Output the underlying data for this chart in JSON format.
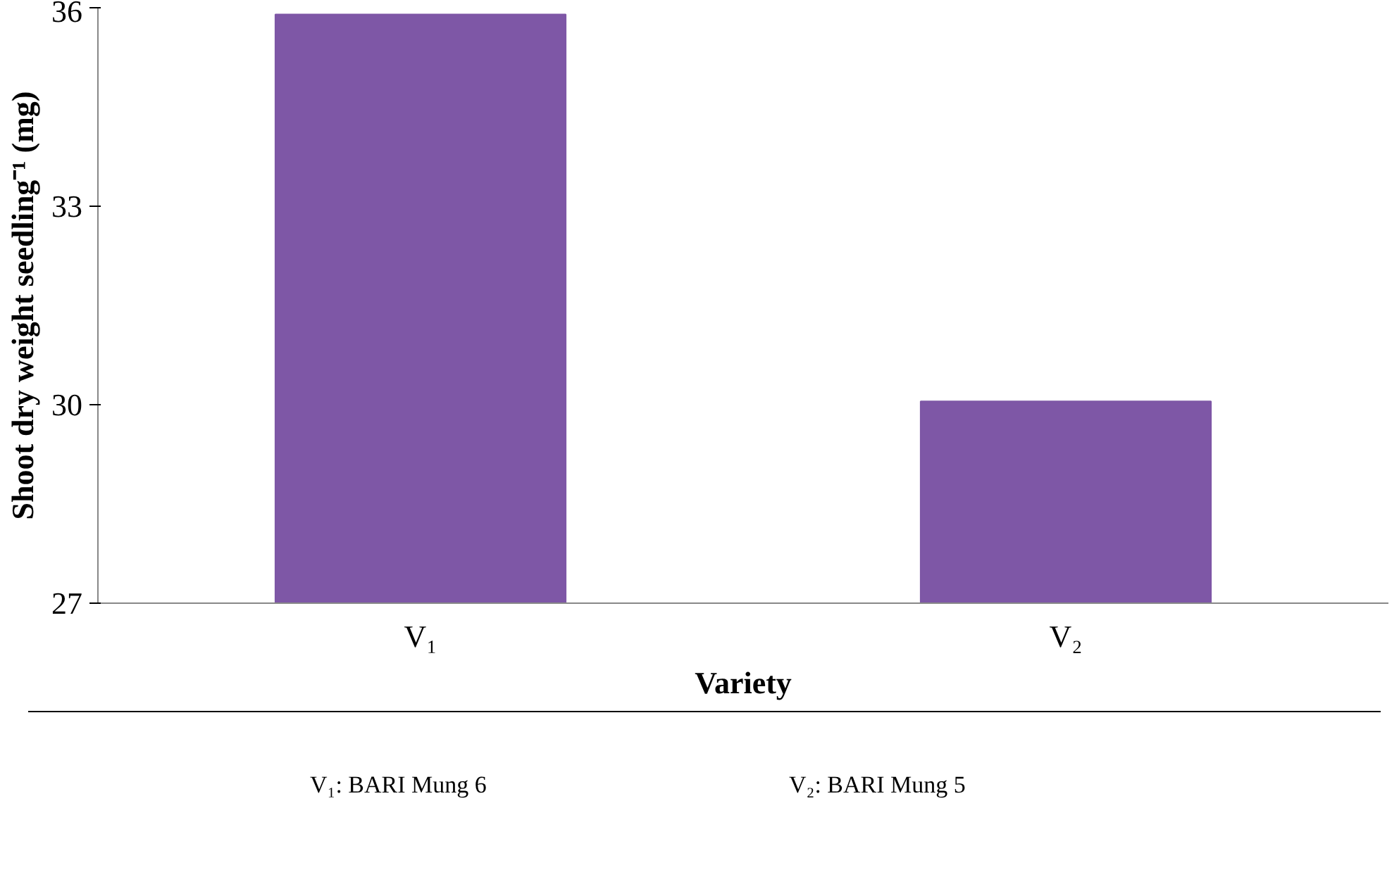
{
  "chart_data": {
    "type": "bar",
    "categories": [
      "V₁",
      "V₂"
    ],
    "values": [
      35.9,
      30.05
    ],
    "color": "#7e57a6",
    "ylim": [
      27,
      36
    ],
    "yticks": [
      27,
      30,
      33,
      36
    ],
    "xlabel": "Variety",
    "ylabel": "Shoot dry weight seedling⁻¹ (mg)",
    "grid": false,
    "annotations": [
      "V₁: BARI Mung 6",
      "V₂: BARI Mung 5"
    ]
  }
}
